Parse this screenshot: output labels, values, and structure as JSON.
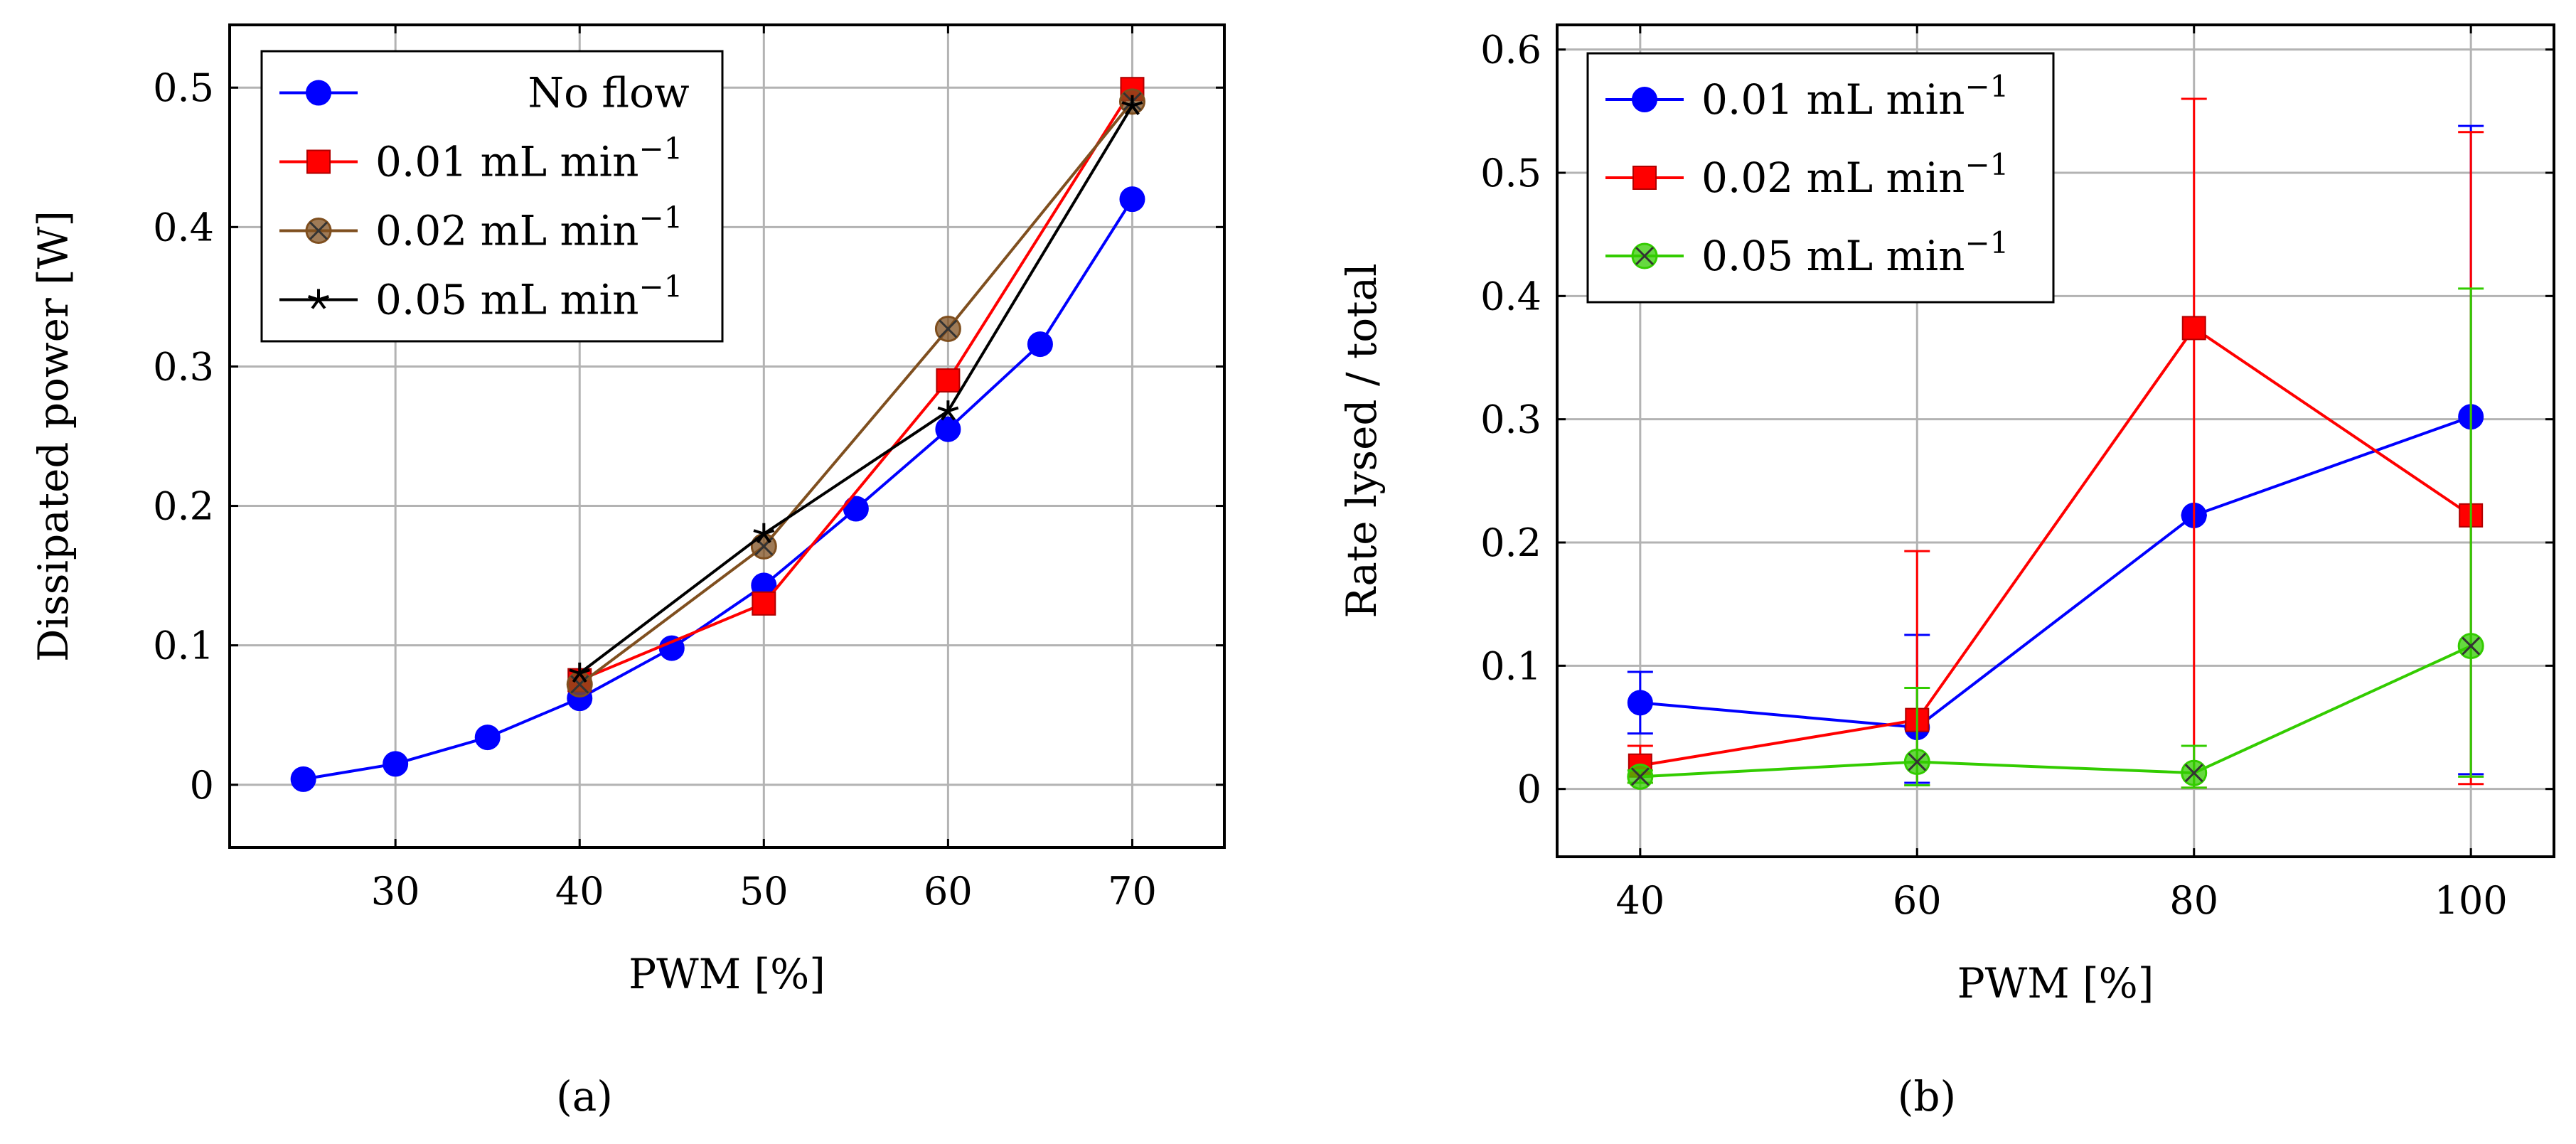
{
  "chart_data": [
    {
      "type": "line",
      "caption": "(a)",
      "xlabel": "PWM [%]",
      "ylabel": "Dissipated power [W]",
      "xlim": [
        21,
        75
      ],
      "ylim": [
        -0.045,
        0.545
      ],
      "xticks": [
        30,
        40,
        50,
        60,
        70
      ],
      "yticks": [
        0,
        0.1,
        0.2,
        0.3,
        0.4,
        0.5
      ],
      "xtick_labels": [
        "30",
        "40",
        "50",
        "60",
        "70"
      ],
      "ytick_labels": [
        "0",
        "0.1",
        "0.2",
        "0.3",
        "0.4",
        "0.5"
      ],
      "grid": true,
      "legend_position": "top-left",
      "series": [
        {
          "name": "No flow",
          "color": "#0000ff",
          "marker": "circle",
          "x": [
            25,
            30,
            35,
            40,
            45,
            50,
            55,
            60,
            65,
            70
          ],
          "y": [
            0.004,
            0.015,
            0.034,
            0.062,
            0.098,
            0.143,
            0.198,
            0.255,
            0.316,
            0.42
          ]
        },
        {
          "name": "0.01 mL min−1",
          "color": "#ff0000",
          "marker": "square",
          "x": [
            40,
            50,
            60,
            70
          ],
          "y": [
            0.075,
            0.13,
            0.29,
            0.499
          ]
        },
        {
          "name": "0.02 mL min−1",
          "color": "#7f4f1f",
          "marker": "otimes",
          "x": [
            40,
            50,
            60,
            70
          ],
          "y": [
            0.072,
            0.171,
            0.327,
            0.49
          ]
        },
        {
          "name": "0.05 mL min−1",
          "color": "#000000",
          "marker": "star",
          "x": [
            40,
            50,
            60,
            70
          ],
          "y": [
            0.08,
            0.18,
            0.268,
            0.487
          ]
        }
      ]
    },
    {
      "type": "line",
      "caption": "(b)",
      "xlabel": "PWM [%]",
      "ylabel": "Rate lysed / total",
      "xlim": [
        34,
        106
      ],
      "ylim": [
        -0.055,
        0.62
      ],
      "xticks": [
        40,
        60,
        80,
        100
      ],
      "yticks": [
        0,
        0.1,
        0.2,
        0.3,
        0.4,
        0.5,
        0.6
      ],
      "xtick_labels": [
        "40",
        "60",
        "80",
        "100"
      ],
      "ytick_labels": [
        "0",
        "0.1",
        "0.2",
        "0.3",
        "0.4",
        "0.5",
        "0.6"
      ],
      "grid": true,
      "legend_position": "top-left",
      "series": [
        {
          "name": "0.01 mL min−1",
          "color": "#0000ff",
          "marker": "circle",
          "x": [
            40,
            60,
            80,
            100
          ],
          "y": [
            0.07,
            0.05,
            0.222,
            0.302
          ],
          "err_low": [
            0.045,
            0.005,
            0.222,
            0.012
          ],
          "err_high": [
            0.095,
            0.125,
            0.222,
            0.538
          ]
        },
        {
          "name": "0.02 mL min−1",
          "color": "#ff0000",
          "marker": "square",
          "x": [
            40,
            60,
            80,
            100
          ],
          "y": [
            0.019,
            0.056,
            0.374,
            0.222
          ],
          "err_low": [
            0.005,
            0.003,
            0.001,
            0.004
          ],
          "err_high": [
            0.035,
            0.193,
            0.56,
            0.533
          ]
        },
        {
          "name": "0.05 mL min−1",
          "color": "#33cc00",
          "marker": "otimes",
          "x": [
            40,
            60,
            80,
            100
          ],
          "y": [
            0.01,
            0.022,
            0.013,
            0.116
          ],
          "err_low": [
            0.005,
            0.003,
            0.001,
            0.01
          ],
          "err_high": [
            0.015,
            0.082,
            0.035,
            0.406
          ]
        }
      ]
    }
  ]
}
